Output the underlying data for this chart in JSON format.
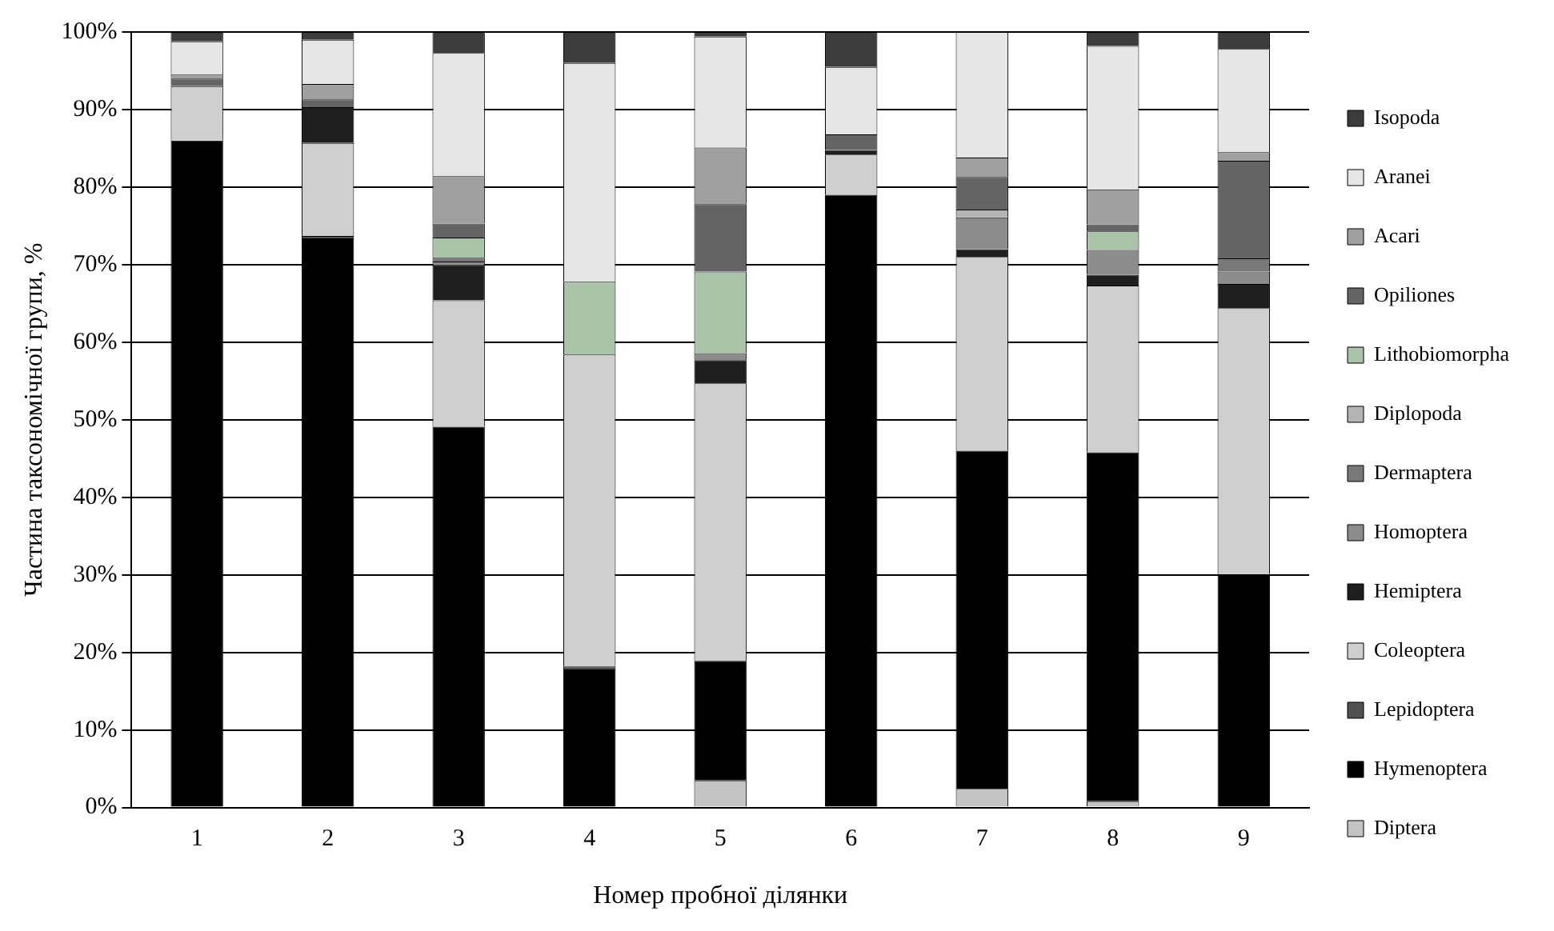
{
  "chart_data": {
    "type": "bar",
    "stacked": true,
    "xlabel": "Номер пробної ділянки",
    "ylabel": "Частина таксономічної групи, %",
    "categories": [
      "1",
      "2",
      "3",
      "4",
      "5",
      "6",
      "7",
      "8",
      "9"
    ],
    "ylim": [
      0,
      100
    ],
    "yticks": [
      {
        "value": 0,
        "label": "0%"
      },
      {
        "value": 10,
        "label": "10%"
      },
      {
        "value": 20,
        "label": "20%"
      },
      {
        "value": 30,
        "label": "30%"
      },
      {
        "value": 40,
        "label": "40%"
      },
      {
        "value": 50,
        "label": "50%"
      },
      {
        "value": 60,
        "label": "60%"
      },
      {
        "value": 70,
        "label": "70%"
      },
      {
        "value": 80,
        "label": "80%"
      },
      {
        "value": 90,
        "label": "90%"
      },
      {
        "value": 100,
        "label": "100%"
      }
    ],
    "grid": "y",
    "legend": "right",
    "series": [
      {
        "name": "Diptera",
        "color": "#c4c4c4",
        "values": [
          0,
          0,
          0,
          0,
          3.5,
          0,
          2.4,
          0.8,
          0
        ]
      },
      {
        "name": "Hymenoptera",
        "color": "#000000",
        "values": [
          86,
          73.4,
          49.1,
          17.8,
          15.4,
          79,
          43.6,
          45,
          30.1
        ]
      },
      {
        "name": "Lepidoptera",
        "color": "#505050",
        "values": [
          0,
          0.3,
          0,
          0.4,
          0,
          0,
          0,
          0,
          0
        ]
      },
      {
        "name": "Coleoptera",
        "color": "#cfcfcf",
        "values": [
          7,
          12,
          16.3,
          40.2,
          35.8,
          5.2,
          25,
          21.5,
          34.3
        ]
      },
      {
        "name": "Hemiptera",
        "color": "#1e1e1e",
        "values": [
          0,
          4.6,
          4.5,
          0,
          3,
          0.6,
          1,
          1.4,
          3.1
        ]
      },
      {
        "name": "Homoptera",
        "color": "#8c8c8c",
        "values": [
          0,
          0,
          0.5,
          0,
          0.9,
          0,
          4.1,
          3.2,
          1.6
        ]
      },
      {
        "name": "Dermaptera",
        "color": "#787878",
        "values": [
          0,
          0,
          0.5,
          0,
          0,
          0,
          0,
          0,
          1.7
        ]
      },
      {
        "name": "Diplopoda",
        "color": "#b4b4b4",
        "values": [
          0,
          0,
          0,
          0,
          0,
          0,
          1,
          0,
          0
        ]
      },
      {
        "name": "Lithobiomorpha",
        "color": "#a9c4a9",
        "values": [
          0,
          0,
          2.6,
          9.4,
          10.5,
          0,
          0,
          2.4,
          0
        ]
      },
      {
        "name": "Opiliones",
        "color": "#646464",
        "values": [
          1,
          1,
          1.8,
          0,
          8.7,
          2,
          4.2,
          0.9,
          12.6
        ]
      },
      {
        "name": "Acari",
        "color": "#a0a0a0",
        "values": [
          0.5,
          2,
          6.1,
          0,
          7.3,
          0,
          2.5,
          4.5,
          1.1
        ]
      },
      {
        "name": "Aranei",
        "color": "#e6e6e6",
        "values": [
          4.3,
          5.7,
          15.9,
          28.2,
          14.3,
          8.7,
          16.2,
          18.5,
          13.3
        ]
      },
      {
        "name": "Isopoda",
        "color": "#3c3c3c",
        "values": [
          1.2,
          1,
          2.7,
          4,
          0.6,
          4.5,
          0,
          1.8,
          2.2
        ]
      }
    ]
  }
}
